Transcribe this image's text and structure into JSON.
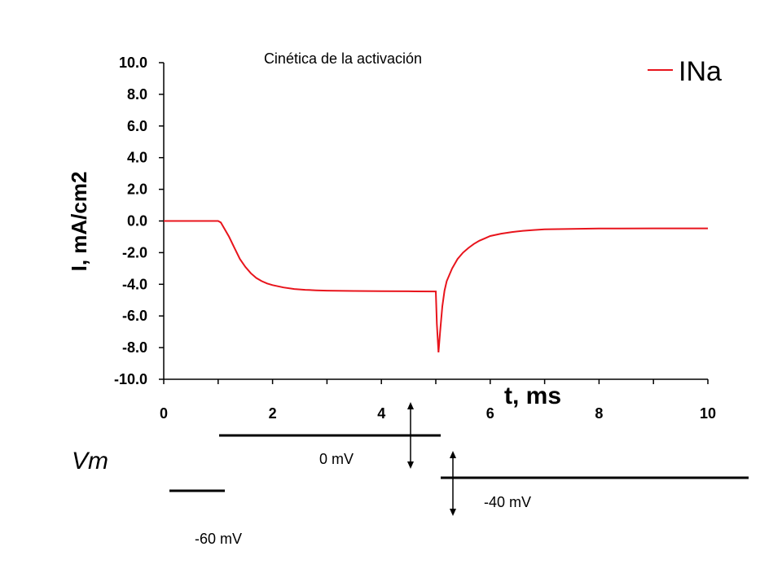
{
  "chart_data": {
    "type": "line",
    "title": "Cinética de la activación",
    "xlabel": "t, ms",
    "ylabel": "I, mA/cm2",
    "xlim": [
      0,
      10
    ],
    "ylim": [
      -10,
      10
    ],
    "x_ticks": [
      0,
      2,
      4,
      6,
      8,
      10
    ],
    "x_tick_labels": [
      "0",
      "2",
      "4",
      "6",
      "8",
      "10"
    ],
    "y_ticks": [
      10,
      8,
      6,
      4,
      2,
      0,
      -2,
      -4,
      -6,
      -8,
      -10
    ],
    "y_tick_labels": [
      "10.0",
      "8.0",
      "6.0",
      "4.0",
      "2.0",
      "0.0",
      "-2.0",
      "-4.0",
      "-6.0",
      "-8.0",
      "-10.0"
    ],
    "grid": false,
    "legend_position": "top-right",
    "series": [
      {
        "name": "INa",
        "color": "#e8141c",
        "x": [
          0,
          1.0,
          1.05,
          1.1,
          1.2,
          1.3,
          1.4,
          1.5,
          1.6,
          1.7,
          1.8,
          1.9,
          2.0,
          2.2,
          2.4,
          2.6,
          2.8,
          3.0,
          3.5,
          4.0,
          4.5,
          5.0,
          5.02,
          5.05,
          5.08,
          5.12,
          5.16,
          5.2,
          5.3,
          5.4,
          5.5,
          5.6,
          5.7,
          5.8,
          5.9,
          6.0,
          6.2,
          6.4,
          6.6,
          6.8,
          7.0,
          7.5,
          8.0,
          9.0,
          10.0
        ],
        "y": [
          0,
          0,
          -0.1,
          -0.4,
          -1.0,
          -1.7,
          -2.4,
          -2.9,
          -3.3,
          -3.6,
          -3.8,
          -3.95,
          -4.05,
          -4.2,
          -4.3,
          -4.35,
          -4.38,
          -4.4,
          -4.42,
          -4.43,
          -4.44,
          -4.45,
          -6.5,
          -8.3,
          -7.0,
          -5.4,
          -4.4,
          -3.8,
          -3.0,
          -2.4,
          -2.0,
          -1.7,
          -1.45,
          -1.25,
          -1.1,
          -0.95,
          -0.8,
          -0.7,
          -0.62,
          -0.57,
          -0.53,
          -0.5,
          -0.48,
          -0.47,
          -0.47
        ]
      }
    ]
  },
  "protocol": {
    "label": "Vm",
    "levels": [
      {
        "label": "-60 mV"
      },
      {
        "label": "0 mV"
      },
      {
        "label": "-40 mV"
      }
    ]
  }
}
